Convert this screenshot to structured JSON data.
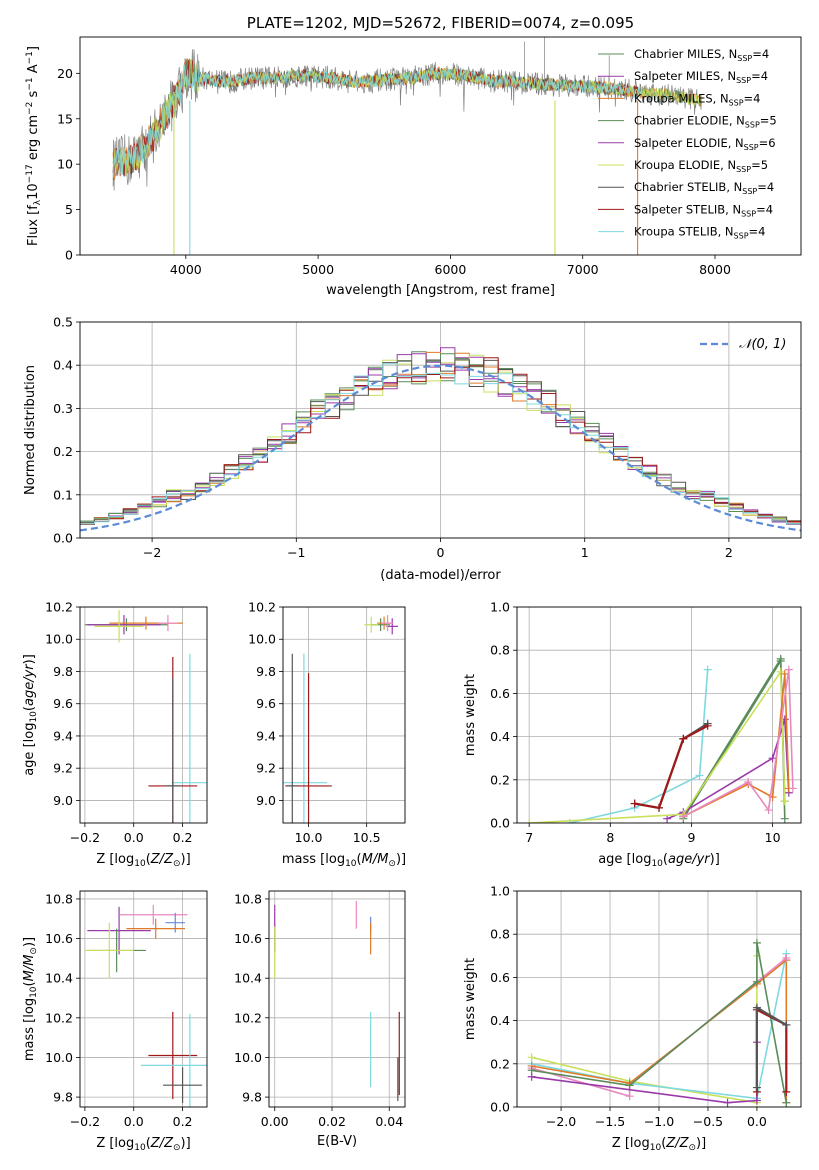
{
  "colors": {
    "Chabrier MILES": "#5a8c5a",
    "Salpeter MILES": "#9a3aaa",
    "Kroupa MILES": "#e07a26",
    "Chabrier ELODIE": "#5a8c5a",
    "Salpeter ELODIE": "#9a3aaa",
    "Kroupa ELODIE": "#c8e05a",
    "Chabrier STELIB": "#555555",
    "Salpeter STELIB": "#a01818",
    "Kroupa STELIB": "#7ed8e0",
    "pink": "#e888c0",
    "blue": "#6a8ad8",
    "gaussian": "#5b8bd6",
    "grid": "#b0b0b0"
  },
  "chart_data": [
    {
      "id": "spectrum",
      "type": "line",
      "title": "PLATE=1202, MJD=52672, FIBERID=0074, z=0.095",
      "xlabel": "wavelength [Angstrom, rest frame]",
      "ylabel": "Flux [f_λ10^-17 erg cm^-2 s^-1 A^-1]",
      "xlim": [
        3200,
        8650
      ],
      "ylim": [
        0,
        24
      ],
      "xticks": [
        4000,
        5000,
        6000,
        7000,
        8000
      ],
      "yticks": [
        0,
        5,
        10,
        15,
        20
      ],
      "grid": false,
      "legend_position": "top-right",
      "legend": [
        "Chabrier MILES, N_SSP=4",
        "Salpeter MILES, N_SSP=4",
        "Kroupa MILES, N_SSP=4",
        "Chabrier ELODIE, N_SSP=5",
        "Salpeter ELODIE, N_SSP=6",
        "Kroupa ELODIE, N_SSP=5",
        "Chabrier STELIB, N_SSP=4",
        "Salpeter STELIB, N_SSP=4",
        "Kroupa STELIB, N_SSP=4"
      ],
      "legend_prefix": [
        "Chabrier MILES, N",
        "Salpeter MILES, N",
        "Kroupa MILES, N",
        "Chabrier ELODIE, N",
        "Salpeter ELODIE, N",
        "Kroupa ELODIE, N",
        "Chabrier STELIB, N",
        "Salpeter STELIB, N",
        "Kroupa STELIB, N"
      ],
      "legend_sub": "SSP",
      "legend_suffix": [
        "=4",
        "=4",
        "=4",
        "=5",
        "=6",
        "=5",
        "=4",
        "=4",
        "=4"
      ],
      "continuum": {
        "x": [
          3450,
          3600,
          3750,
          3850,
          3950,
          4000,
          4100,
          4300,
          4500,
          4700,
          4900,
          5100,
          5300,
          5500,
          5700,
          5900,
          6100,
          6300,
          6500,
          6700,
          6900,
          7100,
          7300,
          7500,
          7700,
          7900
        ],
        "y": [
          10,
          10.5,
          13,
          15.5,
          18,
          20,
          19.5,
          19,
          19.5,
          19.5,
          19.8,
          19.5,
          19,
          19.3,
          19.5,
          20,
          19.8,
          19.2,
          19,
          18.8,
          18.6,
          18.5,
          18.2,
          17.8,
          17.5,
          17
        ]
      },
      "model_start": 3450,
      "data_start": 3450,
      "data_end": 7900,
      "model_end_stelib": 7420,
      "model_end_kroupa_stelib": 7450,
      "drops": [
        {
          "series": "Kroupa ELODIE",
          "x": 3910,
          "y": 0
        },
        {
          "series": "Kroupa STELIB",
          "x": 4030,
          "y": 0
        },
        {
          "series": "Kroupa ELODIE",
          "x": 6790,
          "y": 0
        },
        {
          "series": "Kroupa MILES",
          "x": 7415,
          "y": 0
        }
      ]
    },
    {
      "id": "residuals",
      "type": "area",
      "xlabel": "(data-model)/error",
      "ylabel": "Normed distribution",
      "xlim": [
        -2.5,
        2.5
      ],
      "ylim": [
        0,
        0.5
      ],
      "xticks": [
        -2,
        -1,
        0,
        1,
        2
      ],
      "yticks": [
        0.0,
        0.1,
        0.2,
        0.3,
        0.4,
        0.5
      ],
      "grid": true,
      "legend_position": "top-right",
      "legend": [
        "𝒩(0, 1)"
      ],
      "bin_width": 0.1,
      "histogram_series": [
        "Chabrier MILES",
        "Salpeter MILES",
        "Kroupa MILES",
        "Chabrier ELODIE",
        "Salpeter ELODIE",
        "Kroupa ELODIE",
        "Chabrier STELIB",
        "Salpeter STELIB",
        "Kroupa STELIB"
      ]
    },
    {
      "id": "age-vs-Z",
      "type": "scatter",
      "xlabel": "Z [log10(Z/Z⊙)]",
      "ylabel": "age  [log10(age/yr)]",
      "xlim": [
        -0.22,
        0.3
      ],
      "ylim": [
        8.86,
        10.2
      ],
      "xticks": [
        -0.2,
        0.0,
        0.2
      ],
      "yticks": [
        9.0,
        9.2,
        9.4,
        9.6,
        9.8,
        10.0,
        10.2
      ],
      "grid": true,
      "points": [
        {
          "color": "Chabrier MILES",
          "x": -0.03,
          "y": 10.09,
          "xerr": 0.17,
          "yerr": 0.04
        },
        {
          "color": "Salpeter MILES",
          "x": -0.04,
          "y": 10.09,
          "xerr": 0.15,
          "yerr": 0.06
        },
        {
          "color": "Kroupa MILES",
          "x": 0.05,
          "y": 10.1,
          "xerr": 0.15,
          "yerr": 0.04
        },
        {
          "color": "Kroupa ELODIE",
          "x": -0.06,
          "y": 10.08,
          "xerr": 0.1,
          "yerr": 0.1
        },
        {
          "color": "pink",
          "x": 0.14,
          "y": 10.1,
          "xerr": 0.04,
          "yerr": 0.05
        },
        {
          "color": "Kroupa STELIB",
          "x": 0.23,
          "y": 9.11,
          "xerr": 0.07,
          "yerr": 0.8
        },
        {
          "color": "Salpeter STELIB",
          "x": 0.16,
          "y": 9.09,
          "xerr": 0.1,
          "yerr": 0.8
        },
        {
          "color": "Chabrier STELIB",
          "x": 0.16,
          "y": 9.09,
          "xerr": 0.03,
          "yerr": 0.67
        }
      ]
    },
    {
      "id": "age-vs-mass",
      "type": "scatter",
      "xlabel": "mass [log10(M/M⊙)]",
      "xlim": [
        9.78,
        10.83
      ],
      "ylim": [
        8.86,
        10.2
      ],
      "xticks": [
        10.0,
        10.5
      ],
      "yticks": [
        9.0,
        9.2,
        9.4,
        9.6,
        9.8,
        10.0,
        10.2
      ],
      "grid": true,
      "points": [
        {
          "color": "Chabrier MILES",
          "x": 10.62,
          "y": 10.09,
          "xerr": 0.08,
          "yerr": 0.04
        },
        {
          "color": "Salpeter MILES",
          "x": 10.72,
          "y": 10.08,
          "xerr": 0.05,
          "yerr": 0.05
        },
        {
          "color": "Kroupa MILES",
          "x": 10.65,
          "y": 10.1,
          "xerr": 0.06,
          "yerr": 0.04
        },
        {
          "color": "Kroupa ELODIE",
          "x": 10.54,
          "y": 10.09,
          "xerr": 0.06,
          "yerr": 0.05
        },
        {
          "color": "pink",
          "x": 10.68,
          "y": 10.1,
          "xerr": 0.05,
          "yerr": 0.05
        },
        {
          "color": "Kroupa STELIB",
          "x": 9.96,
          "y": 9.11,
          "xerr": 0.2,
          "yerr": 0.8
        },
        {
          "color": "Salpeter STELIB",
          "x": 10.0,
          "y": 9.09,
          "xerr": 0.2,
          "yerr": 0.7
        },
        {
          "color": "Chabrier STELIB",
          "x": 9.86,
          "y": 9.09,
          "xerr": 0.05,
          "yerr": 0.82
        }
      ]
    },
    {
      "id": "mass-weight-vs-age",
      "type": "line",
      "xlabel": "age  [log10(age/yr)]",
      "ylabel": "mass weight",
      "xlim": [
        6.85,
        10.35
      ],
      "ylim": [
        0,
        1
      ],
      "xticks": [
        7,
        8,
        9,
        10
      ],
      "yticks": [
        0.0,
        0.2,
        0.4,
        0.6,
        0.8,
        1.0
      ],
      "grid": true,
      "series": [
        {
          "color": "Kroupa STELIB",
          "x": [
            7.5,
            8.3,
            9.1,
            9.2
          ],
          "y": [
            0.0,
            0.07,
            0.22,
            0.71
          ]
        },
        {
          "color": "Chabrier STELIB",
          "x": [
            8.3,
            8.6,
            8.9,
            9.2
          ],
          "y": [
            0.09,
            0.07,
            0.39,
            0.46
          ]
        },
        {
          "color": "Salpeter STELIB",
          "x": [
            8.3,
            8.6,
            8.9,
            9.2
          ],
          "y": [
            0.09,
            0.07,
            0.39,
            0.45
          ]
        },
        {
          "color": "Chabrier MILES",
          "x": [
            8.9,
            10.1,
            10.15
          ],
          "y": [
            0.02,
            0.75,
            0.02
          ]
        },
        {
          "color": "Chabrier ELODIE",
          "x": [
            8.9,
            10.1,
            10.15
          ],
          "y": [
            0.03,
            0.76,
            0.1
          ]
        },
        {
          "color": "Salpeter ELODIE",
          "x": [
            8.7,
            8.9,
            10.0,
            10.15,
            10.2
          ],
          "y": [
            0.02,
            0.05,
            0.3,
            0.48,
            0.14
          ]
        },
        {
          "color": "Kroupa ELODIE",
          "x": [
            7.0,
            8.9,
            10.1,
            10.15
          ],
          "y": [
            0.0,
            0.04,
            0.7,
            0.1
          ]
        },
        {
          "color": "Kroupa MILES",
          "x": [
            8.9,
            9.7,
            10.0,
            10.15,
            10.2
          ],
          "y": [
            0.03,
            0.18,
            0.12,
            0.69,
            0.16
          ]
        },
        {
          "color": "pink",
          "x": [
            8.9,
            9.7,
            9.95,
            10.2,
            10.25
          ],
          "y": [
            0.03,
            0.19,
            0.06,
            0.71,
            0.16
          ]
        }
      ]
    },
    {
      "id": "mass-vs-Z",
      "type": "scatter",
      "xlabel": "Z [log10(Z/Z⊙)]",
      "ylabel": "mass [log10(M/M⊙)]",
      "xlim": [
        -0.22,
        0.3
      ],
      "ylim": [
        9.75,
        10.84
      ],
      "xticks": [
        -0.2,
        0.0,
        0.2
      ],
      "yticks": [
        9.8,
        10.0,
        10.2,
        10.4,
        10.6,
        10.8
      ],
      "grid": true,
      "points": [
        {
          "color": "Salpeter MILES",
          "x": -0.06,
          "y": 10.64,
          "xerr": 0.13,
          "yerr": 0.12
        },
        {
          "color": "Kroupa MILES",
          "x": 0.09,
          "y": 10.65,
          "xerr": 0.12,
          "yerr": 0.05
        },
        {
          "color": "pink",
          "x": 0.08,
          "y": 10.72,
          "xerr": 0.14,
          "yerr": 0.05
        },
        {
          "color": "blue",
          "x": 0.17,
          "y": 10.68,
          "xerr": 0.04,
          "yerr": 0.05
        },
        {
          "color": "Chabrier MILES",
          "x": -0.07,
          "y": 10.54,
          "xerr": 0.12,
          "yerr": 0.11
        },
        {
          "color": "Kroupa ELODIE",
          "x": -0.1,
          "y": 10.54,
          "xerr": 0.1,
          "yerr": 0.14
        },
        {
          "color": "Salpeter STELIB",
          "x": 0.16,
          "y": 10.01,
          "xerr": 0.1,
          "yerr": 0.22
        },
        {
          "color": "Kroupa STELIB",
          "x": 0.23,
          "y": 9.96,
          "xerr": 0.2,
          "yerr": 0.26
        },
        {
          "color": "Chabrier STELIB",
          "x": 0.2,
          "y": 9.86,
          "xerr": 0.08,
          "yerr": 0.09
        }
      ]
    },
    {
      "id": "mass-vs-ebv",
      "type": "scatter",
      "xlabel": "E(B-V)",
      "xlim": [
        -0.002,
        0.0455
      ],
      "ylim": [
        9.75,
        10.84
      ],
      "xticks": [
        0.0,
        0.02,
        0.04
      ],
      "yticks": [
        9.8,
        10.0,
        10.2,
        10.4,
        10.6,
        10.8
      ],
      "grid": true,
      "points": [
        {
          "color": "Salpeter MILES",
          "x": 0.0,
          "y": 10.65,
          "xerr": 0,
          "yerr": 0.12
        },
        {
          "color": "Kroupa ELODIE",
          "x": 0.0,
          "y": 10.53,
          "xerr": 0,
          "yerr": 0.13
        },
        {
          "color": "pink",
          "x": 0.0285,
          "y": 10.72,
          "xerr": 0,
          "yerr": 0.07
        },
        {
          "color": "blue",
          "x": 0.0335,
          "y": 10.67,
          "xerr": 0,
          "yerr": 0.04
        },
        {
          "color": "Kroupa MILES",
          "x": 0.0335,
          "y": 10.6,
          "xerr": 0,
          "yerr": 0.08
        },
        {
          "color": "Kroupa STELIB",
          "x": 0.0335,
          "y": 10.04,
          "xerr": 0,
          "yerr": 0.19
        },
        {
          "color": "Salpeter STELIB",
          "x": 0.0435,
          "y": 10.02,
          "xerr": 0,
          "yerr": 0.21
        },
        {
          "color": "Chabrier STELIB",
          "x": 0.043,
          "y": 9.89,
          "xerr": 0,
          "yerr": 0.11
        }
      ]
    },
    {
      "id": "mass-weight-vs-Z",
      "type": "line",
      "xlabel": "Z [log10(Z/Z⊙)]",
      "ylabel": "mass weight",
      "xlim": [
        -2.45,
        0.45
      ],
      "ylim": [
        0,
        1
      ],
      "xticks": [
        -2.0,
        -1.5,
        -1.0,
        -0.5,
        0.0
      ],
      "yticks": [
        0.0,
        0.2,
        0.4,
        0.6,
        0.8,
        1.0
      ],
      "grid": true,
      "series": [
        {
          "color": "Kroupa ELODIE",
          "x": [
            -2.3,
            -1.3,
            0.0,
            0.0
          ],
          "y": [
            0.23,
            0.12,
            0.02,
            0.7
          ]
        },
        {
          "color": "Kroupa STELIB",
          "x": [
            -2.3,
            -1.3,
            0.0,
            0.3
          ],
          "y": [
            0.2,
            0.11,
            0.04,
            0.71
          ]
        },
        {
          "color": "Kroupa MILES",
          "x": [
            -2.3,
            -1.3,
            0.0,
            0.3,
            0.3
          ],
          "y": [
            0.19,
            0.11,
            0.57,
            0.68,
            0.02
          ]
        },
        {
          "color": "pink",
          "x": [
            -2.3,
            -1.3,
            -1.3,
            0.3
          ],
          "y": [
            0.18,
            0.05,
            0.1,
            0.69
          ]
        },
        {
          "color": "Chabrier ELODIE",
          "x": [
            -2.3,
            -1.3,
            0.0,
            0.0,
            0.3
          ],
          "y": [
            0.17,
            0.1,
            0.58,
            0.76,
            0.02
          ]
        },
        {
          "color": "Salpeter ELODIE",
          "x": [
            -2.3,
            -0.3,
            0.0,
            0.0
          ],
          "y": [
            0.14,
            0.02,
            0.03,
            0.3
          ]
        },
        {
          "color": "Salpeter STELIB",
          "x": [
            0.0,
            0.0,
            0.3,
            0.3
          ],
          "y": [
            0.07,
            0.45,
            0.38,
            0.07
          ]
        },
        {
          "color": "Chabrier STELIB",
          "x": [
            0.0,
            0.0,
            0.3
          ],
          "y": [
            0.09,
            0.46,
            0.38
          ]
        }
      ]
    }
  ]
}
